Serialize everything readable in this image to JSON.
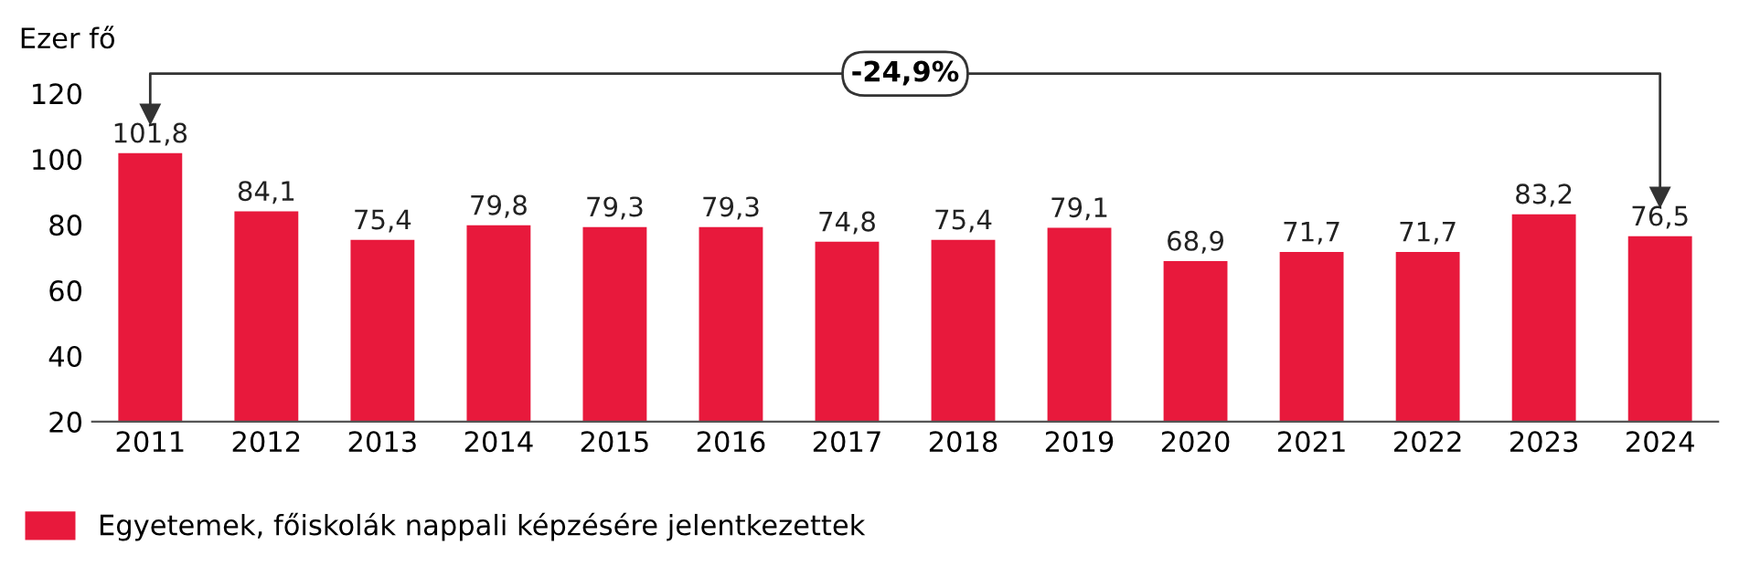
{
  "chart_data": {
    "type": "bar",
    "ylabel": "Ezer fő",
    "categories": [
      "2011",
      "2012",
      "2013",
      "2014",
      "2015",
      "2016",
      "2017",
      "2018",
      "2019",
      "2020",
      "2021",
      "2022",
      "2023",
      "2024"
    ],
    "series": [
      {
        "name": "Egyetemek, főiskolák nappali képzésére jelentkezettek",
        "color": "#e8193c",
        "values": [
          101.8,
          84.1,
          75.4,
          79.8,
          79.3,
          79.3,
          74.8,
          75.4,
          79.1,
          68.9,
          71.7,
          71.7,
          83.2,
          76.5
        ],
        "value_labels": [
          "101,8",
          "84,1",
          "75,4",
          "79,8",
          "79,3",
          "79,3",
          "74,8",
          "75,4",
          "79,1",
          "68,9",
          "71,7",
          "71,7",
          "83,2",
          "76,5"
        ]
      }
    ],
    "ylim": [
      20,
      120
    ],
    "yticks": [
      20,
      40,
      60,
      80,
      100,
      120
    ],
    "annotations": [
      "-24,9%"
    ],
    "grid": false,
    "legend": "bottom left"
  }
}
